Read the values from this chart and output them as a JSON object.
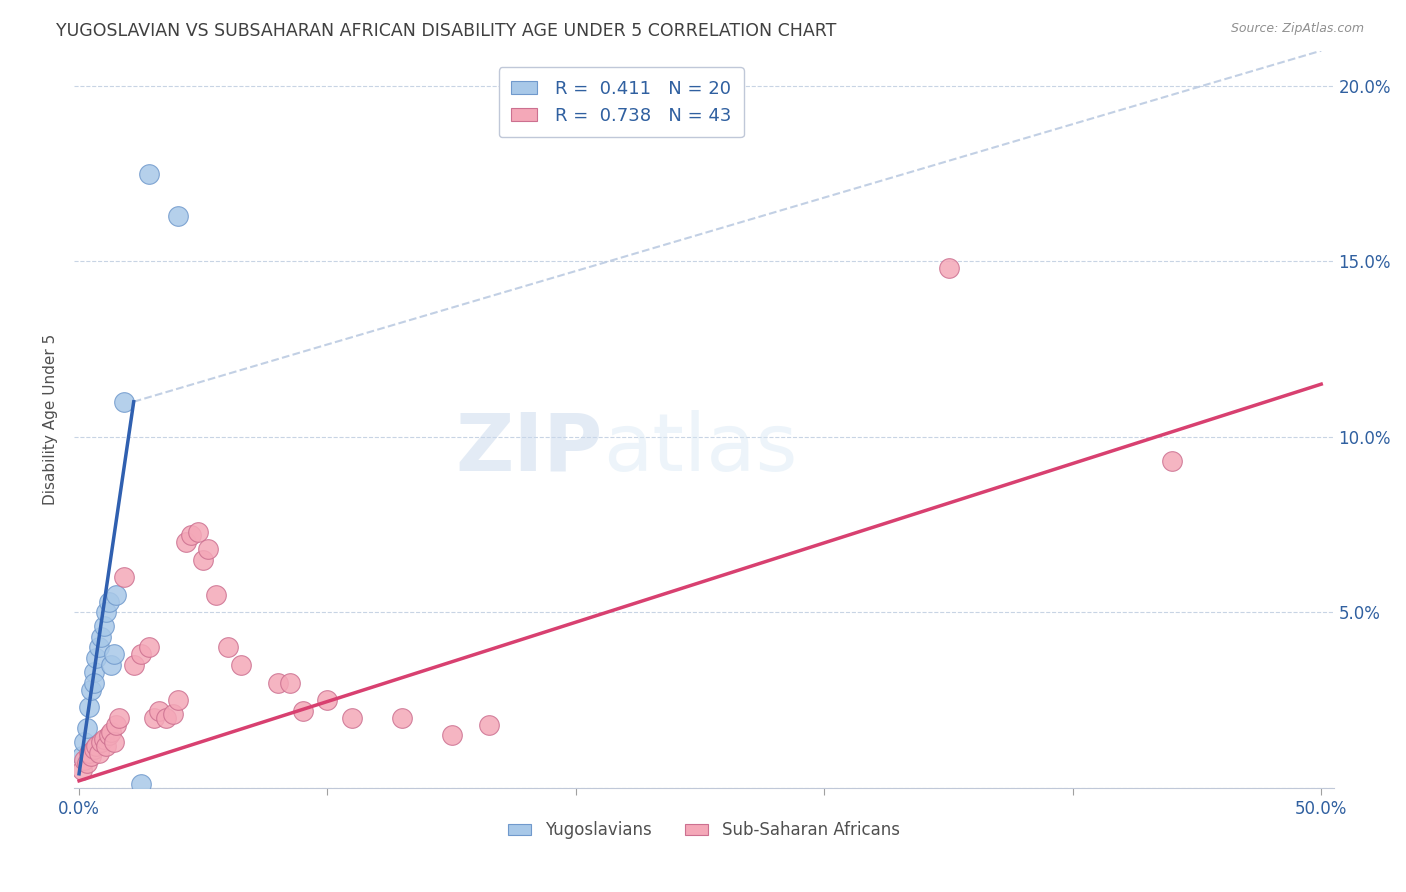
{
  "title": "YUGOSLAVIAN VS SUBSAHARAN AFRICAN DISABILITY AGE UNDER 5 CORRELATION CHART",
  "source": "Source: ZipAtlas.com",
  "ylabel": "Disability Age Under 5",
  "legend_label_blue": "Yugoslavians",
  "legend_label_pink": "Sub-Saharan Africans",
  "r_blue": "0.411",
  "n_blue": "20",
  "r_pink": "0.738",
  "n_pink": "43",
  "blue_scatter_color": "#a8c8e8",
  "pink_scatter_color": "#f4a8b8",
  "blue_line_color": "#3060b0",
  "pink_line_color": "#d84070",
  "dashed_line_color": "#b8c8e0",
  "watermark_color": "#d8e4f0",
  "background_color": "#ffffff",
  "ylim": [
    0.0,
    0.21
  ],
  "xlim": [
    -0.002,
    0.505
  ],
  "ytick_vals": [
    0.0,
    0.05,
    0.1,
    0.15,
    0.2
  ],
  "ytick_labels": [
    "",
    "5.0%",
    "10.0%",
    "15.0%",
    "20.0%"
  ],
  "xtick_vals": [
    0.0,
    0.1,
    0.2,
    0.3,
    0.4,
    0.5
  ],
  "scatter_blue": [
    [
      0.001,
      0.009
    ],
    [
      0.002,
      0.013
    ],
    [
      0.003,
      0.017
    ],
    [
      0.004,
      0.023
    ],
    [
      0.005,
      0.028
    ],
    [
      0.006,
      0.033
    ],
    [
      0.007,
      0.037
    ],
    [
      0.008,
      0.04
    ],
    [
      0.009,
      0.043
    ],
    [
      0.01,
      0.046
    ],
    [
      0.011,
      0.05
    ],
    [
      0.012,
      0.053
    ],
    [
      0.013,
      0.035
    ],
    [
      0.014,
      0.038
    ],
    [
      0.018,
      0.11
    ],
    [
      0.025,
      0.001
    ],
    [
      0.028,
      0.175
    ],
    [
      0.04,
      0.163
    ],
    [
      0.015,
      0.055
    ],
    [
      0.006,
      0.03
    ]
  ],
  "scatter_pink": [
    [
      0.001,
      0.005
    ],
    [
      0.002,
      0.008
    ],
    [
      0.003,
      0.007
    ],
    [
      0.004,
      0.01
    ],
    [
      0.005,
      0.009
    ],
    [
      0.006,
      0.011
    ],
    [
      0.007,
      0.012
    ],
    [
      0.008,
      0.01
    ],
    [
      0.009,
      0.013
    ],
    [
      0.01,
      0.014
    ],
    [
      0.011,
      0.012
    ],
    [
      0.012,
      0.015
    ],
    [
      0.013,
      0.016
    ],
    [
      0.014,
      0.013
    ],
    [
      0.015,
      0.018
    ],
    [
      0.016,
      0.02
    ],
    [
      0.018,
      0.06
    ],
    [
      0.022,
      0.035
    ],
    [
      0.025,
      0.038
    ],
    [
      0.028,
      0.04
    ],
    [
      0.03,
      0.02
    ],
    [
      0.032,
      0.022
    ],
    [
      0.035,
      0.02
    ],
    [
      0.038,
      0.021
    ],
    [
      0.04,
      0.025
    ],
    [
      0.043,
      0.07
    ],
    [
      0.045,
      0.072
    ],
    [
      0.048,
      0.073
    ],
    [
      0.05,
      0.065
    ],
    [
      0.052,
      0.068
    ],
    [
      0.055,
      0.055
    ],
    [
      0.06,
      0.04
    ],
    [
      0.065,
      0.035
    ],
    [
      0.08,
      0.03
    ],
    [
      0.085,
      0.03
    ],
    [
      0.09,
      0.022
    ],
    [
      0.1,
      0.025
    ],
    [
      0.11,
      0.02
    ],
    [
      0.13,
      0.02
    ],
    [
      0.15,
      0.015
    ],
    [
      0.165,
      0.018
    ],
    [
      0.35,
      0.148
    ],
    [
      0.44,
      0.093
    ]
  ],
  "blue_trendline_x": [
    0.0,
    0.022
  ],
  "blue_trendline_y": [
    0.004,
    0.11
  ],
  "pink_trendline_x": [
    0.0,
    0.5
  ],
  "pink_trendline_y": [
    0.002,
    0.115
  ],
  "dashed_line_x": [
    0.022,
    0.5
  ],
  "dashed_line_y": [
    0.11,
    0.21
  ]
}
